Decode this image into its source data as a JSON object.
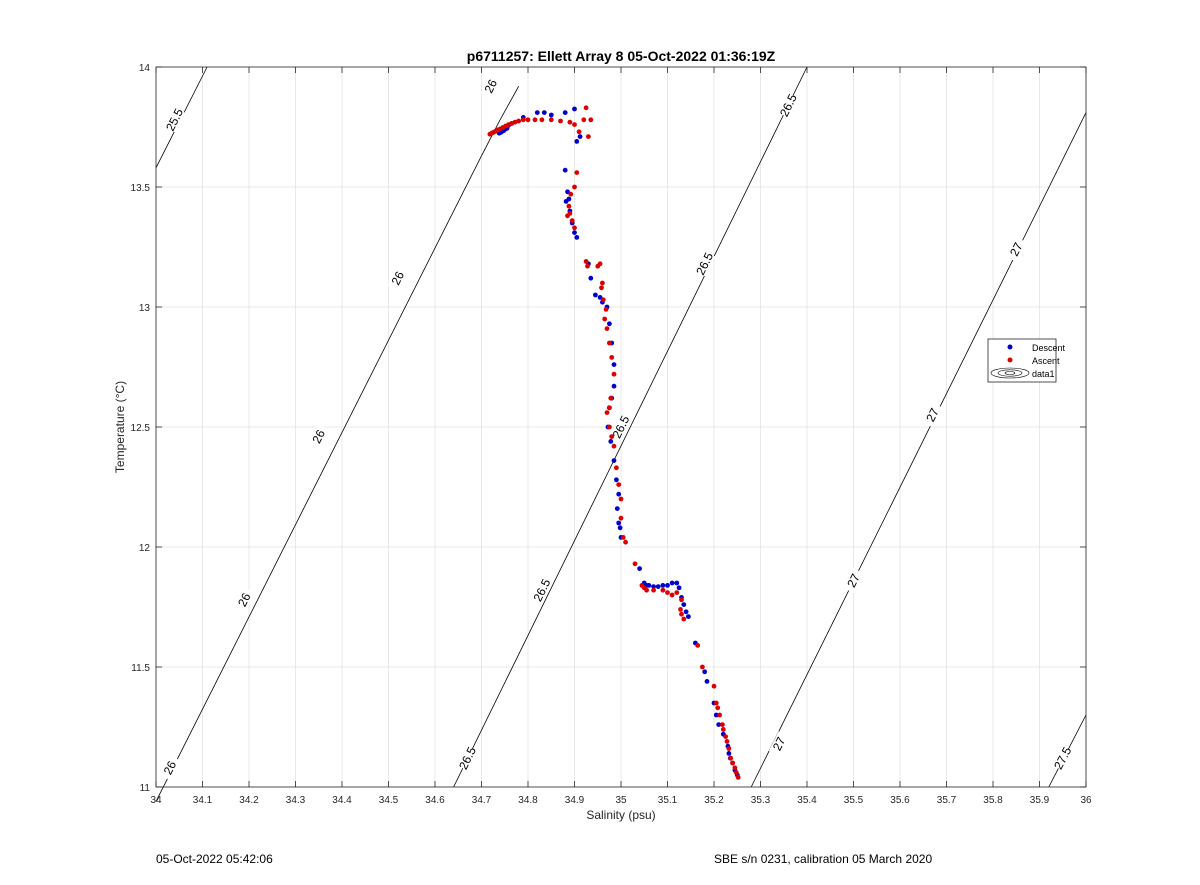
{
  "chart_data": {
    "type": "scatter",
    "title": "p6711257: Ellett Array 8 05-Oct-2022 01:36:19Z",
    "xlabel": "Salinity (psu)",
    "ylabel": "Temperature (°C)",
    "xlim": [
      34,
      36
    ],
    "ylim": [
      11,
      14
    ],
    "xticks": [
      "34",
      "34.1",
      "34.2",
      "34.3",
      "34.4",
      "34.5",
      "34.6",
      "34.7",
      "34.8",
      "34.9",
      "35",
      "35.1",
      "35.2",
      "35.3",
      "35.4",
      "35.5",
      "35.6",
      "35.7",
      "35.8",
      "35.9",
      "36"
    ],
    "yticks": [
      "11",
      "11.5",
      "12",
      "12.5",
      "13",
      "13.5",
      "14"
    ],
    "grid": true,
    "legend_placement": "right",
    "legend": [
      {
        "label": "Descent",
        "color": "#0000cc",
        "marker": "dot"
      },
      {
        "label": "Ascent",
        "color": "#dd0000",
        "marker": "dot"
      },
      {
        "label": "data1",
        "color": "#000000",
        "marker": "contour"
      }
    ],
    "series": [
      {
        "name": "Descent",
        "color": "#0000cc",
        "points": [
          [
            34.742,
            13.728
          ],
          [
            34.748,
            13.735
          ],
          [
            34.752,
            13.742
          ],
          [
            34.756,
            13.752
          ],
          [
            34.76,
            13.76
          ],
          [
            34.755,
            13.745
          ],
          [
            34.745,
            13.732
          ],
          [
            34.738,
            13.724
          ],
          [
            34.79,
            13.79
          ],
          [
            34.82,
            13.81
          ],
          [
            34.835,
            13.81
          ],
          [
            34.85,
            13.8
          ],
          [
            34.88,
            13.81
          ],
          [
            34.9,
            13.825
          ],
          [
            34.905,
            13.69
          ],
          [
            34.912,
            13.71
          ],
          [
            34.88,
            13.57
          ],
          [
            34.885,
            13.48
          ],
          [
            34.888,
            13.45
          ],
          [
            34.882,
            13.44
          ],
          [
            34.89,
            13.4
          ],
          [
            34.895,
            13.35
          ],
          [
            34.9,
            13.31
          ],
          [
            34.905,
            13.29
          ],
          [
            34.93,
            13.18
          ],
          [
            34.935,
            13.12
          ],
          [
            34.945,
            13.05
          ],
          [
            34.955,
            13.04
          ],
          [
            34.96,
            13.02
          ],
          [
            34.97,
            13
          ],
          [
            34.975,
            12.93
          ],
          [
            34.98,
            12.85
          ],
          [
            34.985,
            12.76
          ],
          [
            34.985,
            12.67
          ],
          [
            34.98,
            12.62
          ],
          [
            34.975,
            12.58
          ],
          [
            34.972,
            12.5
          ],
          [
            34.978,
            12.44
          ],
          [
            34.985,
            12.36
          ],
          [
            34.99,
            12.28
          ],
          [
            34.995,
            12.22
          ],
          [
            34.992,
            12.16
          ],
          [
            34.995,
            12.1
          ],
          [
            34.998,
            12.08
          ],
          [
            35.0,
            12.04
          ],
          [
            35.04,
            11.91
          ],
          [
            35.05,
            11.85
          ],
          [
            35.055,
            11.84
          ],
          [
            35.06,
            11.84
          ],
          [
            35.07,
            11.835
          ],
          [
            35.08,
            11.835
          ],
          [
            35.09,
            11.84
          ],
          [
            35.1,
            11.84
          ],
          [
            35.11,
            11.85
          ],
          [
            35.12,
            11.85
          ],
          [
            35.125,
            11.83
          ],
          [
            35.13,
            11.79
          ],
          [
            35.135,
            11.76
          ],
          [
            35.14,
            11.73
          ],
          [
            35.145,
            11.71
          ],
          [
            35.16,
            11.6
          ],
          [
            35.18,
            11.48
          ],
          [
            35.185,
            11.44
          ],
          [
            35.2,
            11.35
          ],
          [
            35.205,
            11.3
          ],
          [
            35.21,
            11.26
          ],
          [
            35.22,
            11.22
          ],
          [
            35.23,
            11.17
          ],
          [
            35.232,
            11.14
          ],
          [
            35.235,
            11.12
          ],
          [
            35.24,
            11.1
          ],
          [
            35.245,
            11.07
          ],
          [
            35.25,
            11.05
          ]
        ]
      },
      {
        "name": "Ascent",
        "color": "#dd0000",
        "points": [
          [
            34.718,
            13.72
          ],
          [
            34.722,
            13.724
          ],
          [
            34.726,
            13.728
          ],
          [
            34.73,
            13.732
          ],
          [
            34.735,
            13.738
          ],
          [
            34.74,
            13.742
          ],
          [
            34.746,
            13.748
          ],
          [
            34.752,
            13.754
          ],
          [
            34.758,
            13.76
          ],
          [
            34.765,
            13.765
          ],
          [
            34.772,
            13.77
          ],
          [
            34.78,
            13.775
          ],
          [
            34.79,
            13.78
          ],
          [
            34.8,
            13.78
          ],
          [
            34.815,
            13.78
          ],
          [
            34.83,
            13.78
          ],
          [
            34.85,
            13.78
          ],
          [
            34.87,
            13.775
          ],
          [
            34.89,
            13.77
          ],
          [
            34.9,
            13.76
          ],
          [
            34.91,
            13.73
          ],
          [
            34.92,
            13.78
          ],
          [
            34.925,
            13.83
          ],
          [
            34.935,
            13.78
          ],
          [
            34.93,
            13.71
          ],
          [
            34.905,
            13.56
          ],
          [
            34.9,
            13.5
          ],
          [
            34.892,
            13.47
          ],
          [
            34.888,
            13.42
          ],
          [
            34.89,
            13.39
          ],
          [
            34.885,
            13.38
          ],
          [
            34.895,
            13.36
          ],
          [
            34.9,
            13.33
          ],
          [
            34.925,
            13.19
          ],
          [
            34.928,
            13.17
          ],
          [
            34.955,
            13.18
          ],
          [
            34.95,
            13.17
          ],
          [
            34.96,
            13.1
          ],
          [
            34.958,
            13.08
          ],
          [
            34.962,
            13.03
          ],
          [
            34.968,
            12.99
          ],
          [
            34.965,
            12.95
          ],
          [
            34.97,
            12.91
          ],
          [
            34.975,
            12.85
          ],
          [
            34.98,
            12.79
          ],
          [
            34.985,
            12.72
          ],
          [
            34.978,
            12.62
          ],
          [
            34.975,
            12.58
          ],
          [
            34.97,
            12.56
          ],
          [
            34.975,
            12.5
          ],
          [
            34.98,
            12.46
          ],
          [
            34.985,
            12.42
          ],
          [
            34.99,
            12.33
          ],
          [
            34.995,
            12.26
          ],
          [
            35.0,
            12.2
          ],
          [
            35.0,
            12.12
          ],
          [
            35.005,
            12.04
          ],
          [
            35.01,
            12.02
          ],
          [
            35.03,
            11.93
          ],
          [
            35.045,
            11.84
          ],
          [
            35.05,
            11.83
          ],
          [
            35.055,
            11.82
          ],
          [
            35.07,
            11.82
          ],
          [
            35.09,
            11.82
          ],
          [
            35.1,
            11.81
          ],
          [
            35.11,
            11.8
          ],
          [
            35.12,
            11.81
          ],
          [
            35.13,
            11.78
          ],
          [
            35.128,
            11.74
          ],
          [
            35.13,
            11.72
          ],
          [
            35.135,
            11.7
          ],
          [
            35.165,
            11.59
          ],
          [
            35.175,
            11.5
          ],
          [
            35.2,
            11.42
          ],
          [
            35.205,
            11.35
          ],
          [
            35.208,
            11.33
          ],
          [
            35.212,
            11.3
          ],
          [
            35.218,
            11.26
          ],
          [
            35.22,
            11.24
          ],
          [
            35.225,
            11.21
          ],
          [
            35.228,
            11.19
          ],
          [
            35.232,
            11.16
          ],
          [
            35.236,
            11.12
          ],
          [
            35.24,
            11.1
          ],
          [
            35.245,
            11.08
          ],
          [
            35.248,
            11.06
          ],
          [
            35.252,
            11.04
          ]
        ]
      }
    ],
    "contours": [
      {
        "level": "25.5",
        "segments": [
          [
            [
              34.0,
              13.58
            ],
            [
              34.11,
              14.0
            ]
          ]
        ],
        "labels": [
          {
            "x": 34.04,
            "y": 13.78,
            "text": "25.5"
          }
        ]
      },
      {
        "level": "26",
        "segments": [
          [
            [
              34.0,
              10.94
            ],
            [
              34.7,
              13.63
            ]
          ],
          [
            [
              34.7,
              13.63
            ],
            [
              34.74,
              13.78
            ]
          ],
          [
            [
              34.74,
              13.78
            ],
            [
              34.78,
              13.92
            ]
          ]
        ],
        "labels": [
          {
            "x": 34.03,
            "y": 11.08,
            "text": "26"
          },
          {
            "x": 34.19,
            "y": 11.78,
            "text": "26"
          },
          {
            "x": 34.35,
            "y": 12.46,
            "text": "26"
          },
          {
            "x": 34.52,
            "y": 13.12,
            "text": "26"
          },
          {
            "x": 34.72,
            "y": 13.92,
            "text": "26"
          }
        ]
      },
      {
        "level": "26.5",
        "segments": [
          [
            [
              34.64,
              11.0
            ],
            [
              35.4,
              14.0
            ]
          ]
        ],
        "labels": [
          {
            "x": 34.67,
            "y": 11.12,
            "text": "26.5"
          },
          {
            "x": 34.83,
            "y": 11.82,
            "text": "26.5"
          },
          {
            "x": 35.0,
            "y": 12.5,
            "text": "26.5"
          },
          {
            "x": 35.18,
            "y": 13.18,
            "text": "26.5"
          },
          {
            "x": 35.36,
            "y": 13.84,
            "text": "26.5"
          }
        ]
      },
      {
        "level": "27",
        "segments": [
          [
            [
              35.28,
              11.0
            ],
            [
              36.0,
              13.81
            ]
          ]
        ],
        "labels": [
          {
            "x": 35.34,
            "y": 11.18,
            "text": "27"
          },
          {
            "x": 35.5,
            "y": 11.86,
            "text": "27"
          },
          {
            "x": 35.67,
            "y": 12.55,
            "text": "27"
          },
          {
            "x": 35.85,
            "y": 13.24,
            "text": "27"
          }
        ]
      },
      {
        "level": "27.5",
        "segments": [
          [
            [
              35.92,
              11.0
            ],
            [
              36.0,
              11.3
            ]
          ]
        ],
        "labels": [
          {
            "x": 35.95,
            "y": 11.12,
            "text": "27.5"
          }
        ]
      }
    ]
  },
  "footer": {
    "left": "05-Oct-2022 05:42:06",
    "right": "SBE s/n 0231, calibration 05 March 2020"
  }
}
